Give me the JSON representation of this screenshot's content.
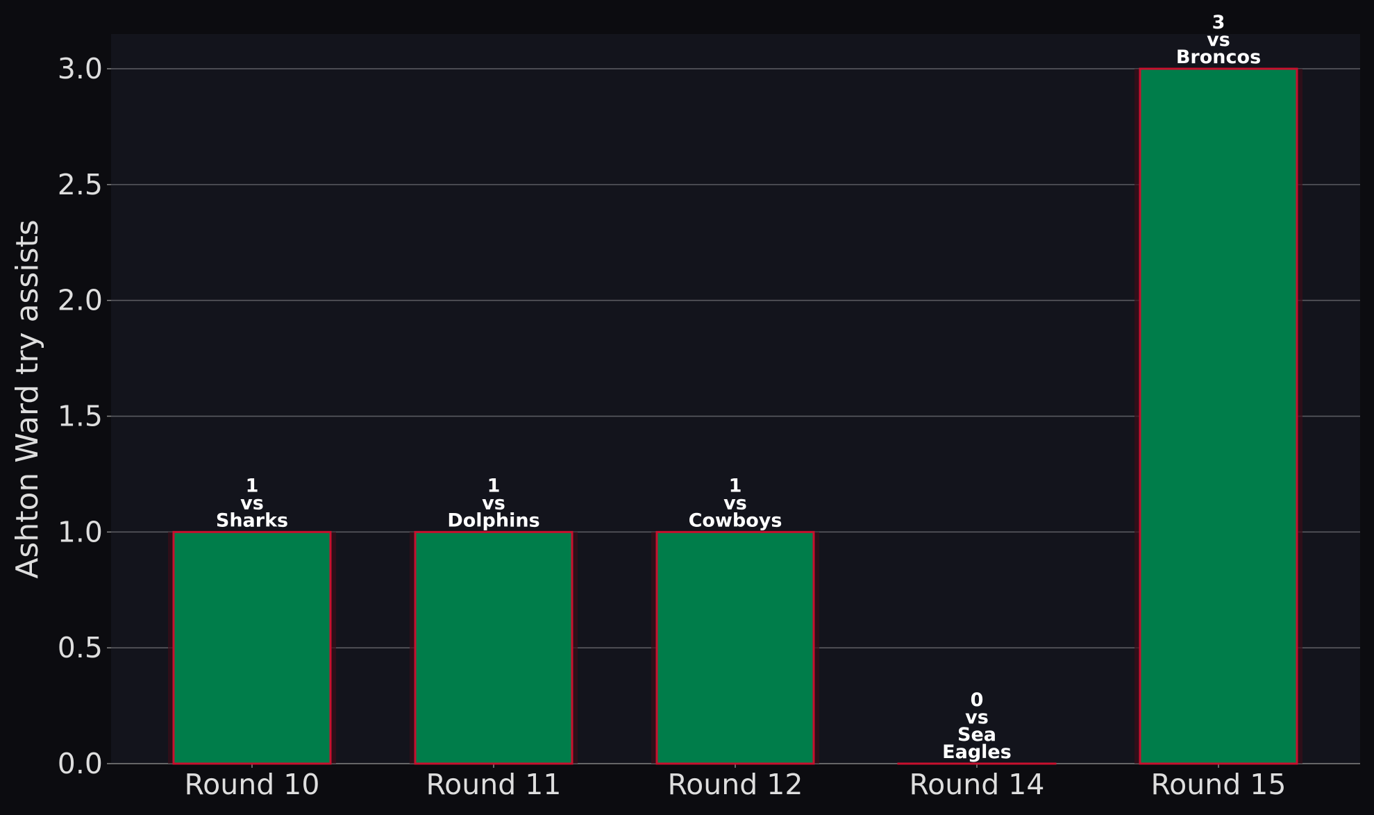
{
  "chart_data": {
    "type": "bar",
    "y_label": "Ashton Ward try assists",
    "categories": [
      "Round 10",
      "Round 11",
      "Round 12",
      "Round 14",
      "Round 15"
    ],
    "values": [
      1,
      1,
      1,
      0,
      3
    ],
    "opponent_prefix": "vs",
    "opponents": [
      "Sharks",
      "Dolphins",
      "Cowboys",
      "Sea Eagles",
      "Broncos"
    ],
    "color": "#007d4a",
    "edge_color": "#c8102e",
    "ylim": [
      0,
      3.15
    ],
    "yticks": [
      {
        "value": 0,
        "label": "0.0"
      },
      0.5,
      {
        "value": 1,
        "label": "1.0"
      },
      1.5,
      {
        "value": 2,
        "label": "2.0"
      },
      2.5,
      {
        "value": 3,
        "label": "3.0"
      }
    ],
    "grid": true
  }
}
